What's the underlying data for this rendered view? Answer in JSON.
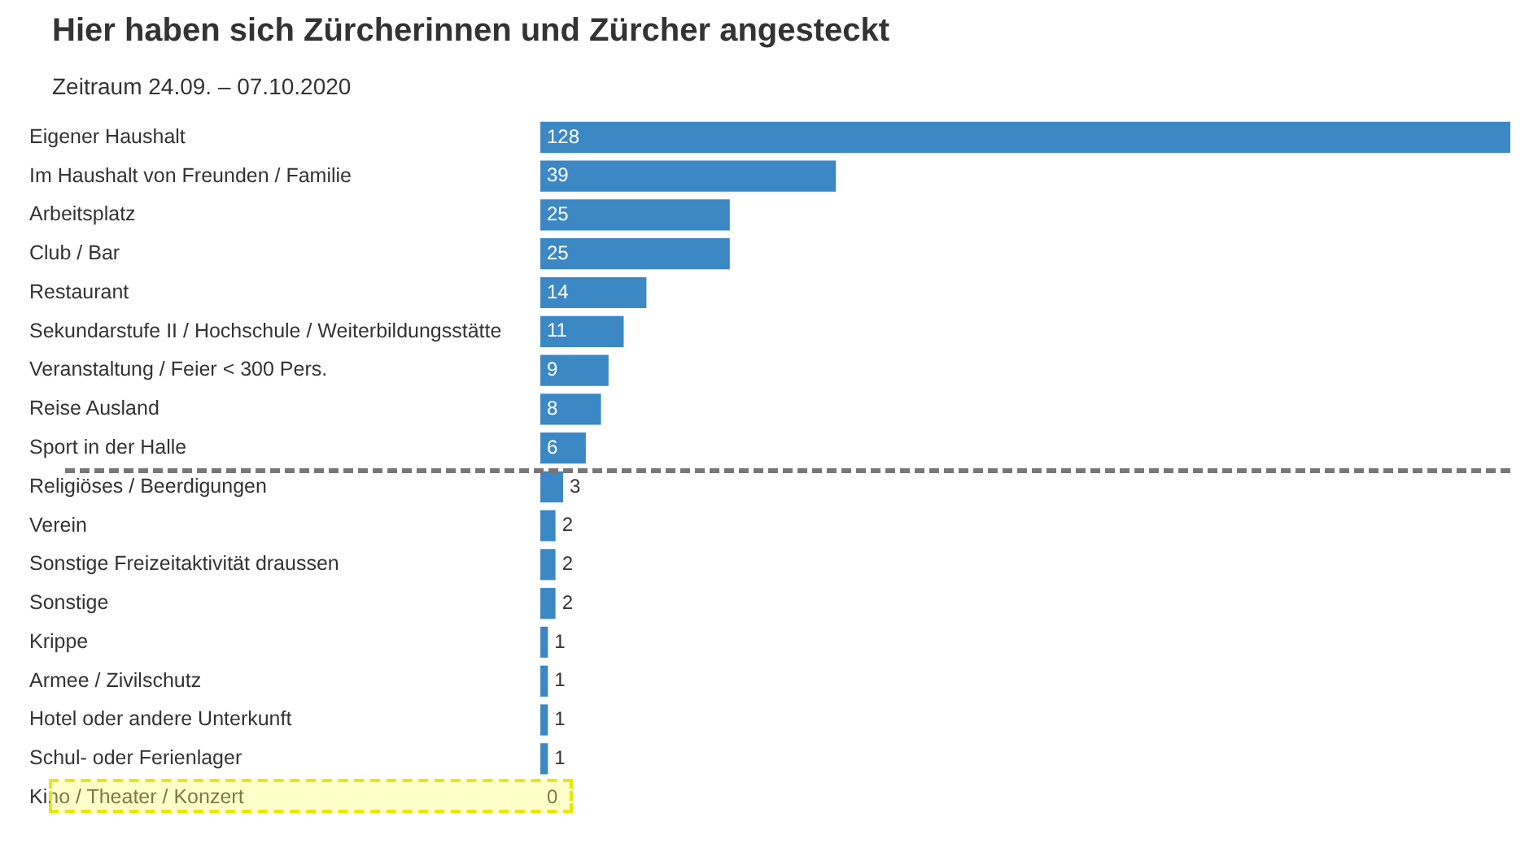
{
  "chart_data": {
    "type": "bar",
    "orientation": "horizontal",
    "title": "Hier haben sich Zürcherinnen und Zürcher angesteckt",
    "subtitle": "Zeitraum 24.09. – 07.10.2020",
    "categories": [
      "Eigener Haushalt",
      "Im Haushalt von Freunden / Familie",
      "Arbeitsplatz",
      "Club / Bar",
      "Restaurant",
      "Sekundarstufe II / Hochschule / Weiterbildungsstätte",
      "Veranstaltung / Feier < 300 Pers.",
      "Reise Ausland",
      "Sport in der Halle",
      "Religiöses / Beerdigungen",
      "Verein",
      "Sonstige Freizeitaktivität draussen",
      "Sonstige",
      "Krippe",
      "Armee / Zivilschutz",
      "Hotel oder andere Unterkunft",
      "Schul- oder Ferienlager",
      "Kino / Theater / Konzert"
    ],
    "values": [
      128,
      39,
      25,
      25,
      14,
      11,
      9,
      8,
      6,
      3,
      2,
      2,
      2,
      1,
      1,
      1,
      1,
      0
    ],
    "color": "#3b88c4",
    "data_labels": true,
    "tick_labels": "y",
    "grid": false,
    "legend": false
  }
}
